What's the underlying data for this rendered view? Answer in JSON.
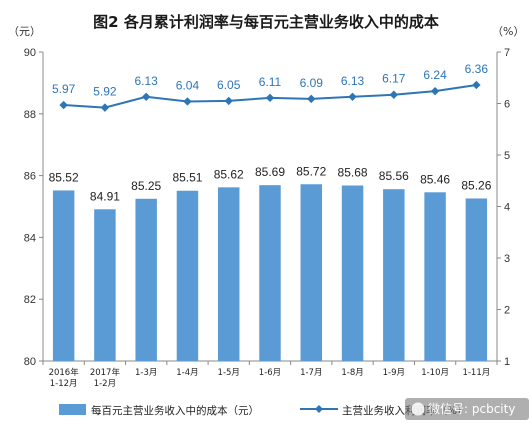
{
  "chart_data": {
    "type": "bar+line",
    "title": "图2  各月累计利润率与每百元主营业务收入中的成本",
    "left_unit": "（元）",
    "right_unit": "（%）",
    "categories": [
      [
        "2016年",
        "1-12月"
      ],
      [
        "2017年",
        "1-2月"
      ],
      [
        "1-3月"
      ],
      [
        "1-4月"
      ],
      [
        "1-5月"
      ],
      [
        "1-6月"
      ],
      [
        "1-7月"
      ],
      [
        "1-8月"
      ],
      [
        "1-9月"
      ],
      [
        "1-10月"
      ],
      [
        "1-11月"
      ]
    ],
    "left_axis": {
      "min": 80,
      "max": 90,
      "step": 2,
      "ticks": [
        "80",
        "82",
        "84",
        "86",
        "88",
        "90"
      ]
    },
    "right_axis": {
      "min": 1,
      "max": 7,
      "step": 1,
      "ticks": [
        "1",
        "2",
        "3",
        "4",
        "5",
        "6",
        "7"
      ]
    },
    "series": [
      {
        "name": "每百元主营业务收入中的成本（元）",
        "type": "bar",
        "axis": "left",
        "color": "#5b9bd5",
        "values": [
          85.52,
          84.91,
          85.25,
          85.51,
          85.62,
          85.69,
          85.72,
          85.68,
          85.56,
          85.46,
          85.26
        ],
        "labels": [
          "85.52",
          "84.91",
          "85.25",
          "85.51",
          "85.62",
          "85.69",
          "85.72",
          "85.68",
          "85.56",
          "85.46",
          "85.26"
        ]
      },
      {
        "name": "主营业务收入利润率",
        "type": "line",
        "axis": "right",
        "color": "#2e75b6",
        "label_color": "#2e75b6",
        "marker": "diamond",
        "values": [
          5.97,
          5.92,
          6.13,
          6.04,
          6.05,
          6.11,
          6.09,
          6.13,
          6.17,
          6.24,
          6.36
        ],
        "labels": [
          "5.97",
          "5.92",
          "6.13",
          "6.04",
          "6.05",
          "6.11",
          "6.09",
          "6.13",
          "6.17",
          "6.24",
          "6.36"
        ]
      }
    ],
    "legend": {
      "position": "bottom",
      "items": [
        "每百元主营业务收入中的成本（元）",
        "主营业务收入利润率（%）"
      ]
    },
    "grid": false
  },
  "watermark": {
    "text": "微信号: pcbcity",
    "icon": "wechat-icon"
  }
}
